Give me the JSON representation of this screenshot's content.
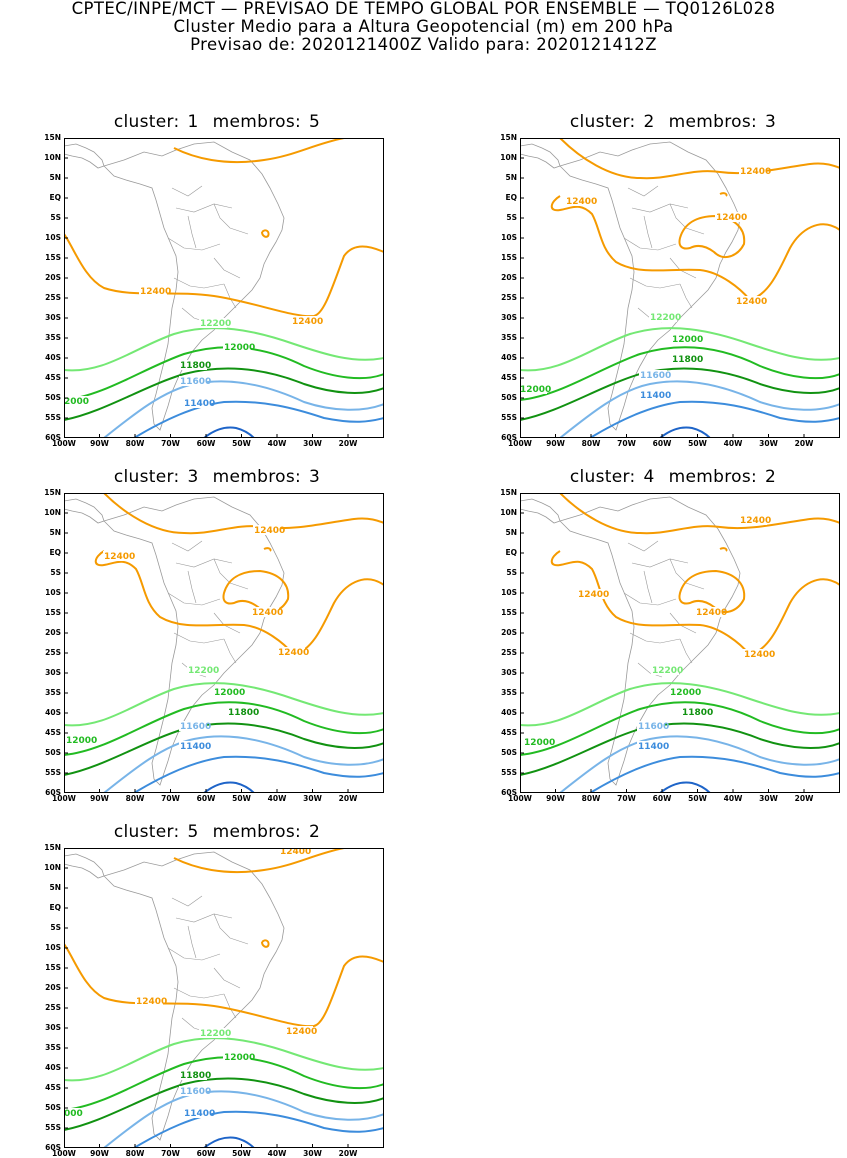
{
  "header": {
    "line1": "CPTEC/INPE/MCT — PREVISAO DE TEMPO GLOBAL POR ENSEMBLE — TQ0126L028",
    "line2": "Cluster Medio para a Altura Geopotencial (m) em 200 hPa",
    "line3": "Previsao de: 2020121400Z    Valido para: 2020121412Z"
  },
  "axes": {
    "lat_labels": [
      "15N",
      "10N",
      "5N",
      "EQ",
      "5S",
      "10S",
      "15S",
      "20S",
      "25S",
      "30S",
      "35S",
      "40S",
      "45S",
      "50S",
      "55S",
      "60S"
    ],
    "lon_labels": [
      "100W",
      "90W",
      "80W",
      "70W",
      "60W",
      "50W",
      "40W",
      "30W",
      "20W"
    ]
  },
  "colors": {
    "c12400": "#f59a00",
    "c12200": "#74e874",
    "c12000": "#22bb22",
    "c11800": "#119211",
    "c11600": "#78b4e8",
    "c11400": "#3c8cdc",
    "c11200": "#1e64c8",
    "coast": "#9a9a9a"
  },
  "panels": [
    {
      "cluster_label": "cluster:",
      "cluster": "1",
      "members_label": "membros:",
      "members": "5",
      "contour_labels": {
        "c12400a": "12400",
        "c12400b": "12400",
        "c12200": "12200",
        "c12000a": "12000",
        "c12000b": "2000",
        "c11800": "11800",
        "c11600": "11600",
        "c11400": "11400"
      }
    },
    {
      "cluster_label": "cluster:",
      "cluster": "2",
      "members_label": "membros:",
      "members": "3",
      "contour_labels": {
        "c12400a": "12400",
        "c12400b": "12400",
        "c12400c": "12400",
        "c12400d": "12400",
        "c12200": "12200",
        "c12000a": "12000",
        "c12000b": "12000",
        "c11800": "11800",
        "c11600": "11600",
        "c11400": "11400"
      }
    },
    {
      "cluster_label": "cluster:",
      "cluster": "3",
      "members_label": "membros:",
      "members": "3",
      "contour_labels": {
        "c12400a": "12400",
        "c12400b": "12400",
        "c12400c": "12400",
        "c12400d": "12400",
        "c12200": "12200",
        "c12000a": "12000",
        "c12000b": "12000",
        "c11800": "11800",
        "c11600": "11600",
        "c11400": "11400"
      }
    },
    {
      "cluster_label": "cluster:",
      "cluster": "4",
      "members_label": "membros:",
      "members": "2",
      "contour_labels": {
        "c12400a": "12400",
        "c12400b": "12400",
        "c12400c": "12400",
        "c12400d": "12400",
        "c12200": "12200",
        "c12000a": "12000",
        "c12000b": "12000",
        "c11800": "11800",
        "c11600": "11600",
        "c11400": "11400"
      }
    },
    {
      "cluster_label": "cluster:",
      "cluster": "5",
      "members_label": "membros:",
      "members": "2",
      "contour_labels": {
        "c12400a": "12400",
        "c12400b": "12400",
        "c12400c": "12400",
        "c12200": "12200",
        "c12000a": "12000",
        "c12000b": "000",
        "c11800": "11800",
        "c11600": "11600",
        "c11400": "11400"
      }
    }
  ]
}
